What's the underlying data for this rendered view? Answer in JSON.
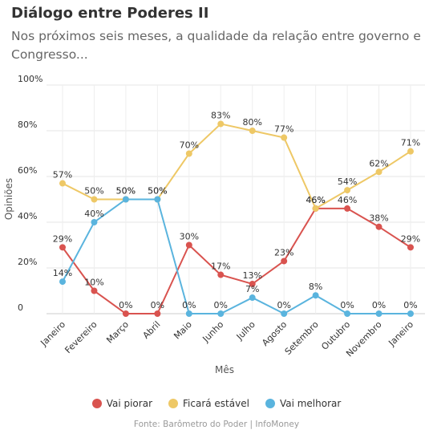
{
  "title": "Diálogo entre Poderes II",
  "subtitle": "Nos próximos seis meses, a qualidade da relação entre governo e Congresso...",
  "source": "Fonte: Barômetro do Poder | InfoMoney",
  "chart_data": {
    "type": "line",
    "xlabel": "Mês",
    "ylabel": "Opiniões",
    "ylim": [
      0,
      100
    ],
    "yticks": [
      "0",
      "20%",
      "40%",
      "60%",
      "80%",
      "100%"
    ],
    "grid": true,
    "legend_position": "bottom",
    "categories": [
      "Janeiro",
      "Fevereiro",
      "Março",
      "Abril",
      "Maio",
      "Junho",
      "Julho",
      "Agosto",
      "Setembro",
      "Outubro",
      "Novembro",
      "Janeiro"
    ],
    "series": [
      {
        "name": "Vai piorar",
        "color": "#d9534f",
        "values": [
          29,
          10,
          0,
          0,
          30,
          17,
          13,
          23,
          46,
          46,
          38,
          29
        ]
      },
      {
        "name": "Ficará estável",
        "color": "#eec866",
        "values": [
          57,
          50,
          50,
          50,
          70,
          83,
          80,
          77,
          46,
          54,
          62,
          71
        ]
      },
      {
        "name": "Vai melhorar",
        "color": "#5ab4de",
        "values": [
          14,
          40,
          50,
          50,
          0,
          0,
          7,
          0,
          8,
          0,
          0,
          0
        ]
      }
    ]
  }
}
